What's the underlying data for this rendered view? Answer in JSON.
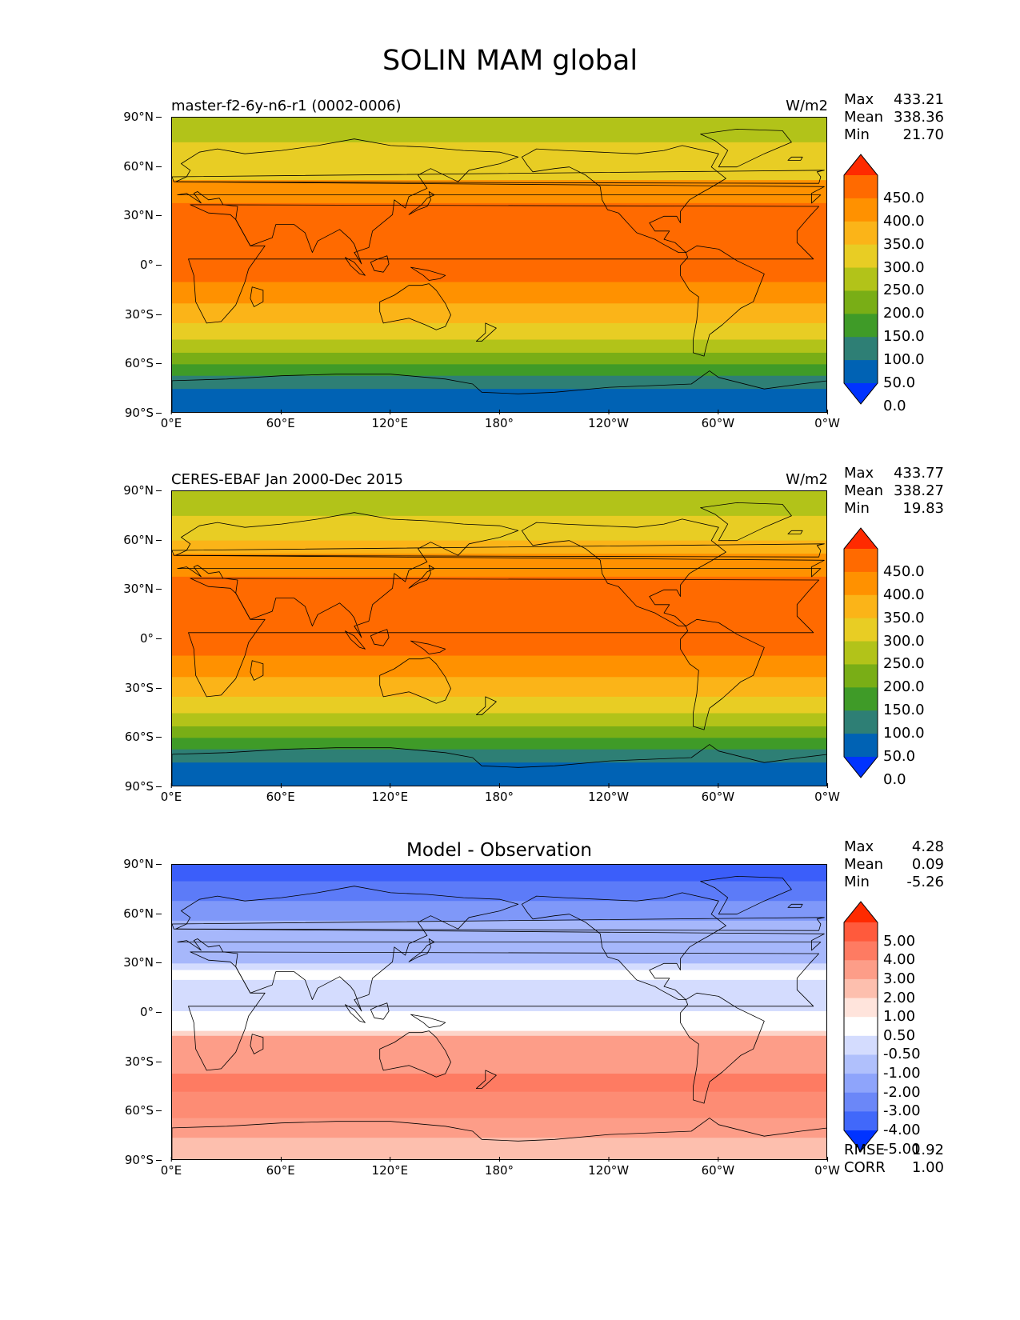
{
  "title": "SOLIN MAM global",
  "lat_ticks": [
    "90°N",
    "60°N",
    "30°N",
    "0°",
    "30°S",
    "60°S",
    "90°S"
  ],
  "lon_ticks": [
    "0°E",
    "60°E",
    "120°E",
    "180°",
    "120°W",
    "60°W",
    "0°W"
  ],
  "panels": [
    {
      "name": "test",
      "title_left": "master-f2-6y-n6-r1 (0002-0006)",
      "title_right": "W/m2",
      "title_center": "",
      "stats": {
        "max_label": "Max",
        "max": "433.21",
        "mean_label": "Mean",
        "mean": "338.36",
        "min_label": "Min",
        "min": "21.70"
      },
      "colorbar": {
        "labels": [
          "450.0",
          "400.0",
          "350.0",
          "300.0",
          "250.0",
          "200.0",
          "150.0",
          "100.0",
          "50.0",
          "0.0"
        ],
        "colors": [
          "#ff2a00",
          "#ff6a00",
          "#ff9100",
          "#fbb418",
          "#e8cd24",
          "#b2c319",
          "#79ae16",
          "#3f9b28",
          "#2e7f75",
          "#0062b4",
          "#0033ff"
        ]
      },
      "bands": [
        {
          "lat_top": 90,
          "lat_bottom": 75,
          "color": "#b2c319"
        },
        {
          "lat_top": 75,
          "lat_bottom": 52,
          "color": "#e8cd24"
        },
        {
          "lat_top": 52,
          "lat_bottom": 38,
          "color": "#ff9100"
        },
        {
          "lat_top": 38,
          "lat_bottom": -10,
          "color": "#ff6a00"
        },
        {
          "lat_top": -10,
          "lat_bottom": -23,
          "color": "#ff9100"
        },
        {
          "lat_top": -23,
          "lat_bottom": -35,
          "color": "#fbb418"
        },
        {
          "lat_top": -35,
          "lat_bottom": -45,
          "color": "#e8cd24"
        },
        {
          "lat_top": -45,
          "lat_bottom": -53,
          "color": "#b2c319"
        },
        {
          "lat_top": -53,
          "lat_bottom": -60,
          "color": "#79ae16"
        },
        {
          "lat_top": -60,
          "lat_bottom": -67,
          "color": "#3f9b28"
        },
        {
          "lat_top": -67,
          "lat_bottom": -75,
          "color": "#2e7f75"
        },
        {
          "lat_top": -75,
          "lat_bottom": -90,
          "color": "#0062b4"
        }
      ]
    },
    {
      "name": "reference",
      "title_left": "CERES-EBAF Jan 2000-Dec 2015",
      "title_right": "W/m2",
      "title_center": "",
      "stats": {
        "max_label": "Max",
        "max": "433.77",
        "mean_label": "Mean",
        "mean": "338.27",
        "min_label": "Min",
        "min": "19.83"
      },
      "colorbar": {
        "labels": [
          "450.0",
          "400.0",
          "350.0",
          "300.0",
          "250.0",
          "200.0",
          "150.0",
          "100.0",
          "50.0",
          "0.0"
        ],
        "colors": [
          "#ff2a00",
          "#ff6a00",
          "#ff9100",
          "#fbb418",
          "#e8cd24",
          "#b2c319",
          "#79ae16",
          "#3f9b28",
          "#2e7f75",
          "#0062b4",
          "#0033ff"
        ]
      },
      "bands": [
        {
          "lat_top": 90,
          "lat_bottom": 75,
          "color": "#b2c319"
        },
        {
          "lat_top": 75,
          "lat_bottom": 60,
          "color": "#e8cd24"
        },
        {
          "lat_top": 60,
          "lat_bottom": 52,
          "color": "#fbb418"
        },
        {
          "lat_top": 52,
          "lat_bottom": 38,
          "color": "#ff9100"
        },
        {
          "lat_top": 38,
          "lat_bottom": -10,
          "color": "#ff6a00"
        },
        {
          "lat_top": -10,
          "lat_bottom": -23,
          "color": "#ff9100"
        },
        {
          "lat_top": -23,
          "lat_bottom": -35,
          "color": "#fbb418"
        },
        {
          "lat_top": -35,
          "lat_bottom": -45,
          "color": "#e8cd24"
        },
        {
          "lat_top": -45,
          "lat_bottom": -53,
          "color": "#b2c319"
        },
        {
          "lat_top": -53,
          "lat_bottom": -60,
          "color": "#79ae16"
        },
        {
          "lat_top": -60,
          "lat_bottom": -67,
          "color": "#3f9b28"
        },
        {
          "lat_top": -67,
          "lat_bottom": -75,
          "color": "#2e7f75"
        },
        {
          "lat_top": -75,
          "lat_bottom": -90,
          "color": "#0062b4"
        }
      ]
    },
    {
      "name": "difference",
      "title_left": "",
      "title_right": "",
      "title_center": "Model - Observation",
      "stats": {
        "max_label": "Max",
        "max": "4.28",
        "mean_label": "Mean",
        "mean": "0.09",
        "min_label": "Min",
        "min": "-5.26"
      },
      "colorbar": {
        "labels": [
          "5.00",
          "4.00",
          "3.00",
          "2.00",
          "1.00",
          "0.50",
          "-0.50",
          "-1.00",
          "-2.00",
          "-3.00",
          "-4.00",
          "-5.00"
        ],
        "colors": [
          "#ff2a00",
          "#ff5a3c",
          "#fe7b62",
          "#fd9d88",
          "#fdbfae",
          "#ffe4dc",
          "#ffffff",
          "#d4dcfe",
          "#b0c0fc",
          "#8ea4fb",
          "#6b87f8",
          "#4168fa",
          "#0033ff"
        ]
      },
      "extra": {
        "rmse_label": "RMSE",
        "rmse": "1.92",
        "corr_label": "CORR",
        "corr": "1.00"
      },
      "bands": [
        {
          "lat_top": 90,
          "lat_bottom": 80,
          "color": "#3b5efa"
        },
        {
          "lat_top": 80,
          "lat_bottom": 68,
          "color": "#5c7bf8"
        },
        {
          "lat_top": 68,
          "lat_bottom": 56,
          "color": "#7f98f9"
        },
        {
          "lat_top": 56,
          "lat_bottom": 30,
          "color": "#a6b7fb"
        },
        {
          "lat_top": 30,
          "lat_bottom": 26,
          "color": "#d4dcfe"
        },
        {
          "lat_top": 26,
          "lat_bottom": 20,
          "color": "#ffffff"
        },
        {
          "lat_top": 20,
          "lat_bottom": 1,
          "color": "#d4dcfe"
        },
        {
          "lat_top": 1,
          "lat_bottom": -11,
          "color": "#ffffff"
        },
        {
          "lat_top": -11,
          "lat_bottom": -14,
          "color": "#fdd4c8"
        },
        {
          "lat_top": -14,
          "lat_bottom": -37,
          "color": "#fd9d88"
        },
        {
          "lat_top": -37,
          "lat_bottom": -48,
          "color": "#fe7b62"
        },
        {
          "lat_top": -48,
          "lat_bottom": -64,
          "color": "#fd8c74"
        },
        {
          "lat_top": -64,
          "lat_bottom": -76,
          "color": "#fd9d88"
        },
        {
          "lat_top": -76,
          "lat_bottom": -90,
          "color": "#fdbfae"
        }
      ]
    }
  ]
}
